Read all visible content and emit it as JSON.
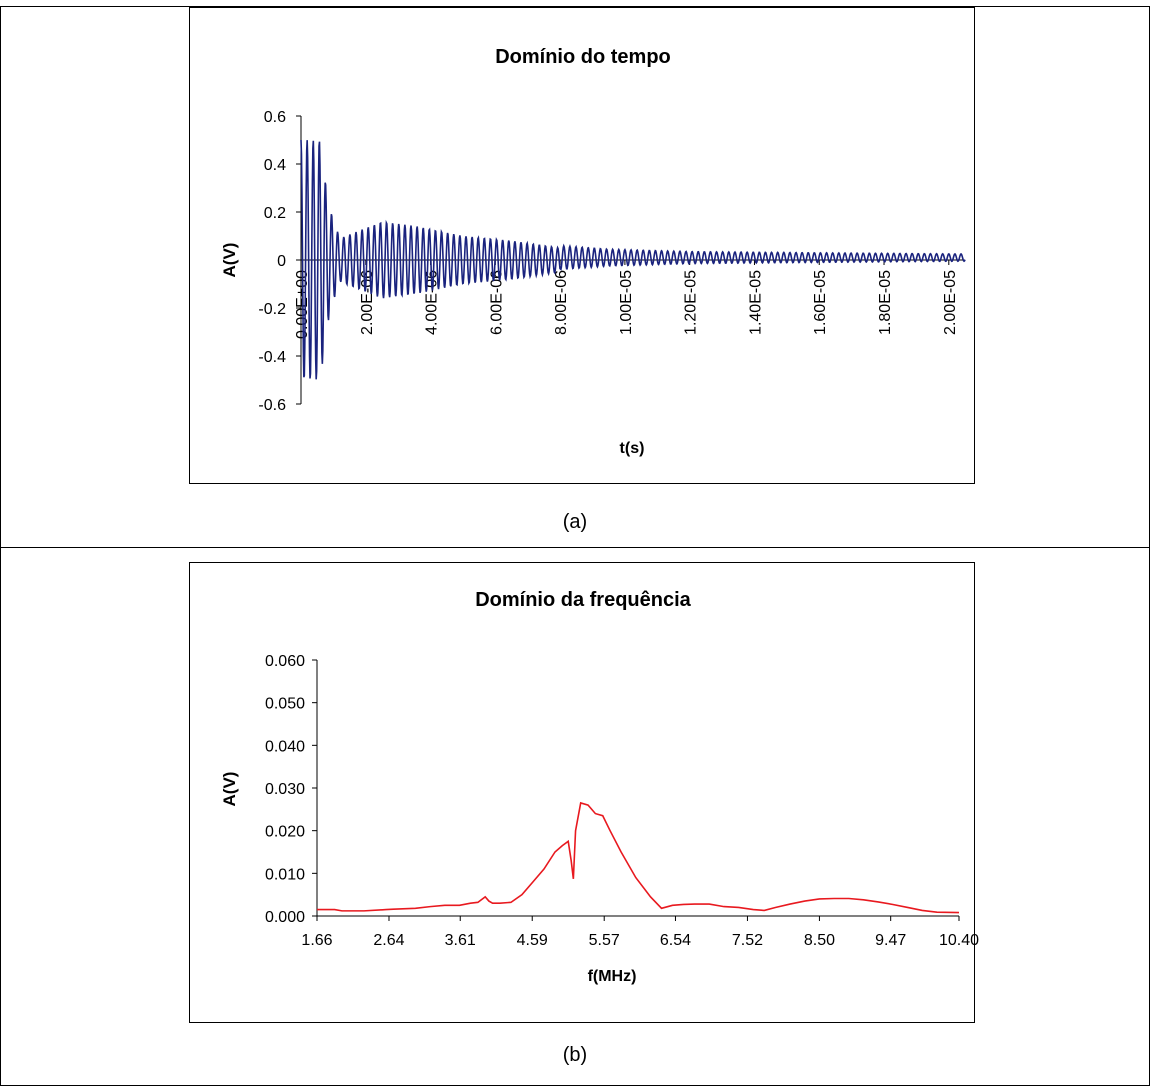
{
  "panels": [
    {
      "caption": "(a)"
    },
    {
      "caption": "(b)"
    }
  ],
  "colors": {
    "time_series": "#1a237e",
    "freq_series": "#e8191f",
    "axis": "#000000"
  },
  "chart_data": [
    {
      "type": "line",
      "title": "Domínio do tempo",
      "xlabel": "t(s)",
      "ylabel": "A(V)",
      "ylim": [
        -0.6,
        0.6
      ],
      "xlim": [
        0,
        2.05e-05
      ],
      "y_ticks": [
        "0.6",
        "0.4",
        "0.2",
        "0",
        "-0.2",
        "-0.4",
        "-0.6"
      ],
      "y_tick_values": [
        0.6,
        0.4,
        0.2,
        0,
        -0.2,
        -0.4,
        -0.6
      ],
      "x_ticks": [
        "0.00E+00",
        "2.00E-06",
        "4.00E-06",
        "6.00E-06",
        "8.00E-06",
        "1.00E-05",
        "1.20E-05",
        "1.40E-05",
        "1.60E-05",
        "1.80E-05",
        "2.00E-05"
      ],
      "x_tick_values": [
        0,
        2e-06,
        4e-06,
        6e-06,
        8e-06,
        1e-05,
        1.2e-05,
        1.4e-05,
        1.6e-05,
        1.8e-05,
        2e-05
      ],
      "grid": false,
      "legend": "none",
      "series": [
        {
          "description": "decaying oscillation, ~5.3 MHz",
          "envelope_t": [
            0,
            6e-07,
            7.5e-07,
            9e-07,
            1.2e-06,
            2.5e-06,
            3.6e-06,
            5e-06,
            6.5e-06,
            8e-06,
            9.5e-06,
            1.2e-05,
            1.6e-05,
            2.05e-05
          ],
          "envelope_amp": [
            0.5,
            0.5,
            0.33,
            0.21,
            0.09,
            0.16,
            0.14,
            0.1,
            0.08,
            0.05,
            0.035,
            0.025,
            0.02,
            0.015
          ],
          "frequency_hz": 5300000,
          "offset_v": 0.01
        }
      ]
    },
    {
      "type": "line",
      "title": "Domínio da frequência",
      "xlabel": "f(MHz)",
      "ylabel": "A(V)",
      "ylim": [
        0,
        0.06
      ],
      "xlim": [
        1.66,
        10.4
      ],
      "y_ticks": [
        "0.060",
        "0.050",
        "0.040",
        "0.030",
        "0.020",
        "0.010",
        "0.000"
      ],
      "y_tick_values": [
        0.06,
        0.05,
        0.04,
        0.03,
        0.02,
        0.01,
        0
      ],
      "x_ticks": [
        "1.66",
        "2.64",
        "3.61",
        "4.59",
        "5.57",
        "6.54",
        "7.52",
        "8.50",
        "9.47",
        "10.40"
      ],
      "x_tick_values": [
        1.66,
        2.64,
        3.61,
        4.59,
        5.57,
        6.54,
        7.52,
        8.5,
        9.47,
        10.4
      ],
      "grid": false,
      "legend": "none",
      "series": [
        {
          "x": [
            1.66,
            1.9,
            2.0,
            2.3,
            2.6,
            2.7,
            3.0,
            3.2,
            3.4,
            3.6,
            3.75,
            3.85,
            3.95,
            4.0,
            4.05,
            4.15,
            4.3,
            4.45,
            4.6,
            4.75,
            4.9,
            5.0,
            5.08,
            5.12,
            5.15,
            5.18,
            5.25,
            5.35,
            5.45,
            5.55,
            5.65,
            5.8,
            6.0,
            6.2,
            6.35,
            6.5,
            6.65,
            6.8,
            7.0,
            7.2,
            7.4,
            7.6,
            7.75,
            7.9,
            8.1,
            8.3,
            8.5,
            8.7,
            8.9,
            9.1,
            9.3,
            9.5,
            9.7,
            9.9,
            10.1,
            10.4
          ],
          "y": [
            0.0015,
            0.0015,
            0.0012,
            0.0012,
            0.0015,
            0.0016,
            0.0018,
            0.0022,
            0.0025,
            0.0025,
            0.003,
            0.0032,
            0.0045,
            0.0035,
            0.003,
            0.003,
            0.0032,
            0.005,
            0.008,
            0.011,
            0.015,
            0.0165,
            0.0175,
            0.013,
            0.0087,
            0.02,
            0.0265,
            0.026,
            0.024,
            0.0235,
            0.02,
            0.015,
            0.009,
            0.0045,
            0.0018,
            0.0025,
            0.0027,
            0.0028,
            0.0028,
            0.0022,
            0.002,
            0.0015,
            0.0013,
            0.002,
            0.0028,
            0.0035,
            0.004,
            0.0041,
            0.0041,
            0.0038,
            0.0033,
            0.0027,
            0.002,
            0.0013,
            0.0009,
            0.0008
          ]
        }
      ]
    }
  ]
}
